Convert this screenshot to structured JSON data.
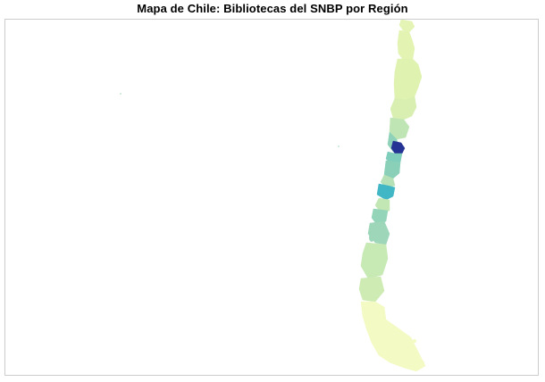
{
  "map": {
    "title": "Mapa de Chile: Bibliotecas del SNBP por Región",
    "colors": {
      "very_low": "#ffffcc",
      "low": "#ecf7b9",
      "low_mid": "#d9f0b3",
      "mid": "#c7e9b4",
      "mid_high": "#9fd8b8",
      "high": "#7fcdbb",
      "higher": "#41b6c4",
      "highest": "#253494",
      "frame": "#cccccc"
    }
  }
}
